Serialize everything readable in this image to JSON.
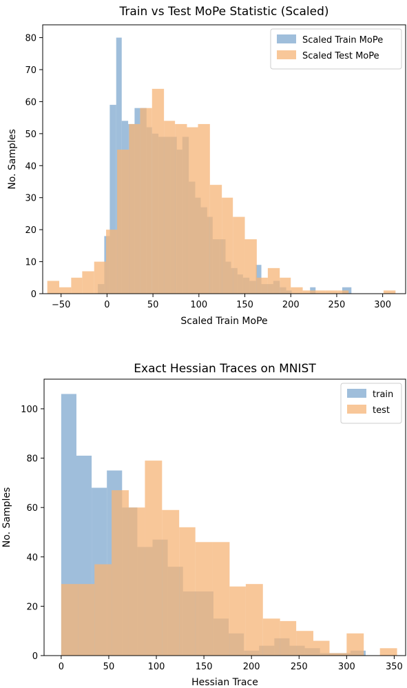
{
  "chart_data": [
    {
      "type": "histogram",
      "title": "Train vs Test MoPe Statistic (Scaled)",
      "xlabel": "Scaled Train MoPe",
      "ylabel": "No. Samples",
      "xlim": [
        -70,
        325
      ],
      "ylim": [
        0,
        84
      ],
      "xticks": [
        -50,
        0,
        50,
        100,
        150,
        200,
        250,
        300
      ],
      "yticks": [
        0,
        10,
        20,
        30,
        40,
        50,
        60,
        70,
        80
      ],
      "legend_position": "top-right",
      "series": [
        {
          "name": "Scaled Train MoPe",
          "color": "#7fa8cf",
          "bins": [
            [
              -10,
              -3,
              3
            ],
            [
              -3,
              3,
              18
            ],
            [
              3,
              10,
              59
            ],
            [
              10,
              16,
              80
            ],
            [
              16,
              23,
              54
            ],
            [
              23,
              30,
              53
            ],
            [
              30,
              36,
              58
            ],
            [
              36,
              43,
              58
            ],
            [
              43,
              49,
              52
            ],
            [
              49,
              56,
              50
            ],
            [
              56,
              63,
              49
            ],
            [
              63,
              69,
              49
            ],
            [
              69,
              76,
              49
            ],
            [
              76,
              82,
              45
            ],
            [
              82,
              89,
              49
            ],
            [
              89,
              96,
              35
            ],
            [
              96,
              102,
              30
            ],
            [
              102,
              109,
              27
            ],
            [
              109,
              115,
              24
            ],
            [
              115,
              122,
              17
            ],
            [
              122,
              129,
              17
            ],
            [
              129,
              135,
              10
            ],
            [
              135,
              142,
              8
            ],
            [
              142,
              148,
              6
            ],
            [
              148,
              155,
              5
            ],
            [
              155,
              162,
              4
            ],
            [
              162,
              168,
              9
            ],
            [
              168,
              175,
              3
            ],
            [
              175,
              181,
              3
            ],
            [
              181,
              188,
              4
            ],
            [
              188,
              195,
              2
            ],
            [
              195,
              201,
              1
            ],
            [
              221,
              227,
              2
            ],
            [
              256,
              266,
              2
            ]
          ]
        },
        {
          "name": "Scaled Test MoPe",
          "color": "#f5b477",
          "bins": [
            [
              -65,
              -52,
              4
            ],
            [
              -52,
              -39,
              2
            ],
            [
              -39,
              -27,
              5
            ],
            [
              -27,
              -14,
              7
            ],
            [
              -14,
              -1,
              10
            ],
            [
              -1,
              11,
              20
            ],
            [
              11,
              24,
              45
            ],
            [
              24,
              36,
              53
            ],
            [
              36,
              49,
              58
            ],
            [
              49,
              62,
              64
            ],
            [
              62,
              74,
              54
            ],
            [
              74,
              87,
              53
            ],
            [
              87,
              99,
              52
            ],
            [
              99,
              112,
              53
            ],
            [
              112,
              125,
              34
            ],
            [
              125,
              137,
              30
            ],
            [
              137,
              150,
              24
            ],
            [
              150,
              163,
              17
            ],
            [
              163,
              175,
              5
            ],
            [
              175,
              188,
              8
            ],
            [
              188,
              200,
              5
            ],
            [
              200,
              213,
              2
            ],
            [
              213,
              226,
              1
            ],
            [
              226,
              238,
              1
            ],
            [
              238,
              251,
              1
            ],
            [
              251,
              263,
              1
            ],
            [
              301,
              314,
              1
            ]
          ]
        }
      ]
    },
    {
      "type": "histogram",
      "title": "Exact Hessian Traces on MNIST",
      "xlabel": "Hessian Trace",
      "ylabel": "No. Samples",
      "xlim": [
        -18,
        362
      ],
      "ylim": [
        0,
        112
      ],
      "xticks": [
        0,
        50,
        100,
        150,
        200,
        250,
        300,
        350
      ],
      "yticks": [
        0,
        20,
        40,
        60,
        80,
        100
      ],
      "legend_position": "top-right",
      "series": [
        {
          "name": "train",
          "color": "#7fa8cf",
          "bins": [
            [
              0,
              16,
              106
            ],
            [
              16,
              32,
              81
            ],
            [
              32,
              48,
              68
            ],
            [
              48,
              64,
              75
            ],
            [
              64,
              80,
              60
            ],
            [
              80,
              96,
              44
            ],
            [
              96,
              112,
              47
            ],
            [
              112,
              128,
              36
            ],
            [
              128,
              144,
              26
            ],
            [
              144,
              160,
              26
            ],
            [
              160,
              176,
              15
            ],
            [
              176,
              192,
              9
            ],
            [
              192,
              208,
              2
            ],
            [
              208,
              224,
              4
            ],
            [
              224,
              240,
              7
            ],
            [
              240,
              256,
              4
            ],
            [
              256,
              272,
              3
            ],
            [
              272,
              288,
              1
            ],
            [
              288,
              304,
              1
            ],
            [
              304,
              320,
              2
            ]
          ]
        },
        {
          "name": "test",
          "color": "#f5b477",
          "bins": [
            [
              0,
              18,
              29
            ],
            [
              18,
              35,
              29
            ],
            [
              35,
              53,
              37
            ],
            [
              53,
              71,
              67
            ],
            [
              71,
              88,
              60
            ],
            [
              88,
              106,
              79
            ],
            [
              106,
              124,
              59
            ],
            [
              124,
              141,
              52
            ],
            [
              141,
              159,
              46
            ],
            [
              159,
              177,
              46
            ],
            [
              177,
              194,
              28
            ],
            [
              194,
              212,
              29
            ],
            [
              212,
              230,
              15
            ],
            [
              230,
              247,
              14
            ],
            [
              247,
              265,
              10
            ],
            [
              265,
              282,
              6
            ],
            [
              282,
              300,
              1
            ],
            [
              300,
              318,
              9
            ],
            [
              318,
              335,
              0
            ],
            [
              335,
              353,
              3
            ]
          ]
        }
      ]
    }
  ]
}
